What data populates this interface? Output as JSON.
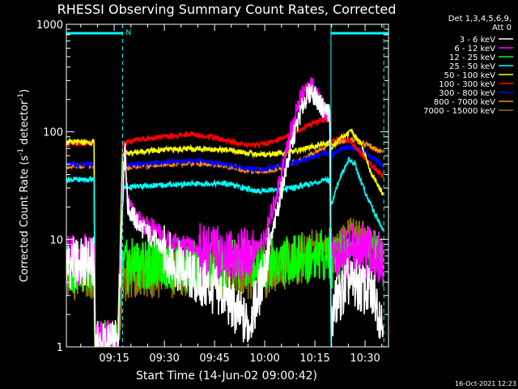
{
  "chart_data": {
    "type": "line",
    "title": "RHESSI Observing Summary Count Rates, Corrected",
    "xlabel": "Start Time (14-Jun-02 09:00:42)",
    "ylabel_main": "Corrected Count Rate (s",
    "ylabel_sup1": "-1",
    "ylabel_mid": " detector",
    "ylabel_sup2": "-1",
    "ylabel_end": ")",
    "y_scale": "log",
    "ylim": [
      1,
      1000
    ],
    "xlim_minutes": [
      0.7,
      97
    ],
    "x_ticks": [
      {
        "t": 15,
        "label": "09:15"
      },
      {
        "t": 30,
        "label": "09:30"
      },
      {
        "t": 45,
        "label": "09:45"
      },
      {
        "t": 60,
        "label": "10:00"
      },
      {
        "t": 75,
        "label": "10:15"
      },
      {
        "t": 90,
        "label": "10:30"
      }
    ],
    "y_ticks": [
      {
        "v": 1,
        "label": "1"
      },
      {
        "v": 10,
        "label": "10"
      },
      {
        "v": 100,
        "label": "100"
      },
      {
        "v": 1000,
        "label": "1000"
      }
    ],
    "legend_header": [
      "Det 1,3,4,5,6,9,",
      "Att 0"
    ],
    "night_flag_label": "N",
    "timestamp": "16-Oct-2021 12:23",
    "flag_segments": [
      [
        0.7,
        17.5
      ],
      [
        79.8,
        97
      ]
    ],
    "gap_markers": [
      17.5,
      79.8,
      95.6
    ],
    "series": [
      {
        "name": "3 - 6 keV",
        "color": "#ffffff",
        "points": [
          [
            0.7,
            6
          ],
          [
            9,
            6
          ],
          [
            9.3,
            1
          ],
          [
            16,
            1
          ],
          [
            17.5,
            22
          ],
          [
            18.2,
            80
          ],
          [
            19,
            20
          ],
          [
            22,
            14
          ],
          [
            27,
            10
          ],
          [
            33,
            6
          ],
          [
            40,
            4
          ],
          [
            48,
            3
          ],
          [
            52,
            2
          ],
          [
            55,
            1.6
          ],
          [
            58,
            3
          ],
          [
            62,
            10
          ],
          [
            66,
            40
          ],
          [
            69,
            100
          ],
          [
            72,
            200
          ],
          [
            74,
            240
          ],
          [
            77,
            170
          ],
          [
            79.5,
            150
          ],
          [
            79.8,
            1.5
          ],
          [
            81,
            2.5
          ],
          [
            85,
            4
          ],
          [
            89,
            3.5
          ],
          [
            93,
            3
          ],
          [
            95.5,
            1.5
          ]
        ]
      },
      {
        "name": "6 - 12 keV",
        "color": "#ff00ff",
        "points": [
          [
            0.7,
            6.5
          ],
          [
            9,
            6.5
          ],
          [
            9.3,
            1
          ],
          [
            16,
            1
          ],
          [
            17.5,
            25
          ],
          [
            18.2,
            85
          ],
          [
            19,
            22
          ],
          [
            22,
            15
          ],
          [
            27,
            12
          ],
          [
            33,
            9
          ],
          [
            40,
            8
          ],
          [
            48,
            7.5
          ],
          [
            52,
            7
          ],
          [
            56,
            7.5
          ],
          [
            60,
            10
          ],
          [
            64,
            30
          ],
          [
            67,
            80
          ],
          [
            70,
            180
          ],
          [
            72,
            240
          ],
          [
            74,
            260
          ],
          [
            77,
            180
          ],
          [
            79.5,
            140
          ],
          [
            79.8,
            7
          ],
          [
            83,
            7.5
          ],
          [
            87,
            8
          ],
          [
            91,
            7.5
          ],
          [
            95.5,
            6.5
          ]
        ]
      },
      {
        "name": "12 - 25 keV",
        "color": "#00ff00",
        "points": [
          [
            0.7,
            5.5
          ],
          [
            9,
            5.5
          ],
          [
            9.3,
            1
          ],
          [
            16,
            1
          ],
          [
            17.5,
            5.5
          ],
          [
            22,
            6
          ],
          [
            30,
            6
          ],
          [
            40,
            5.5
          ],
          [
            50,
            5.8
          ],
          [
            58,
            6
          ],
          [
            65,
            6.2
          ],
          [
            70,
            6.5
          ],
          [
            75,
            7
          ],
          [
            79.5,
            7.5
          ],
          [
            79.8,
            6
          ],
          [
            83,
            7.5
          ],
          [
            87,
            9
          ],
          [
            91,
            8
          ],
          [
            95.5,
            6
          ]
        ]
      },
      {
        "name": "25 - 50 keV",
        "color": "#00ffff",
        "points": [
          [
            0.7,
            36
          ],
          [
            9,
            36
          ],
          [
            9.3,
            1
          ],
          [
            16,
            1
          ],
          [
            17.5,
            30
          ],
          [
            22,
            31
          ],
          [
            30,
            32
          ],
          [
            40,
            33
          ],
          [
            48,
            33
          ],
          [
            54,
            30
          ],
          [
            58,
            28
          ],
          [
            62,
            29
          ],
          [
            68,
            30
          ],
          [
            74,
            33
          ],
          [
            79.5,
            36
          ],
          [
            79.8,
            20
          ],
          [
            81,
            28
          ],
          [
            83,
            40
          ],
          [
            85,
            55
          ],
          [
            87,
            50
          ],
          [
            89,
            33
          ],
          [
            92,
            20
          ],
          [
            95.5,
            12
          ]
        ]
      },
      {
        "name": "50 - 100 keV",
        "color": "#ffff00",
        "points": [
          [
            0.7,
            80
          ],
          [
            9,
            80
          ],
          [
            9.3,
            1
          ],
          [
            16,
            1
          ],
          [
            17.5,
            62
          ],
          [
            22,
            65
          ],
          [
            30,
            68
          ],
          [
            40,
            70
          ],
          [
            48,
            68
          ],
          [
            54,
            64
          ],
          [
            58,
            62
          ],
          [
            62,
            62
          ],
          [
            68,
            65
          ],
          [
            74,
            72
          ],
          [
            79.5,
            80
          ],
          [
            79.8,
            70
          ],
          [
            83,
            90
          ],
          [
            86,
            100
          ],
          [
            89,
            75
          ],
          [
            92,
            40
          ],
          [
            95.5,
            26
          ]
        ]
      },
      {
        "name": "100 - 300 keV",
        "color": "#ff0000",
        "points": [
          [
            0.7,
            78
          ],
          [
            9,
            78
          ],
          [
            9.3,
            1
          ],
          [
            16,
            1
          ],
          [
            17.5,
            78
          ],
          [
            22,
            85
          ],
          [
            30,
            90
          ],
          [
            38,
            95
          ],
          [
            44,
            90
          ],
          [
            50,
            80
          ],
          [
            56,
            75
          ],
          [
            62,
            80
          ],
          [
            68,
            95
          ],
          [
            73,
            115
          ],
          [
            78,
            130
          ],
          [
            79.5,
            128
          ],
          [
            79.8,
            80
          ],
          [
            83,
            90
          ],
          [
            86,
            80
          ],
          [
            89,
            62
          ],
          [
            92,
            48
          ],
          [
            95.5,
            38
          ]
        ]
      },
      {
        "name": "300 - 800 keV",
        "color": "#0000ff",
        "points": [
          [
            0.7,
            50
          ],
          [
            9,
            50
          ],
          [
            9.3,
            1
          ],
          [
            16,
            1
          ],
          [
            17.5,
            48
          ],
          [
            22,
            50
          ],
          [
            30,
            52
          ],
          [
            40,
            54
          ],
          [
            48,
            50
          ],
          [
            54,
            46
          ],
          [
            58,
            45
          ],
          [
            62,
            46
          ],
          [
            68,
            50
          ],
          [
            74,
            58
          ],
          [
            79.5,
            65
          ],
          [
            79.8,
            60
          ],
          [
            83,
            70
          ],
          [
            86,
            72
          ],
          [
            89,
            68
          ],
          [
            92,
            58
          ],
          [
            95.5,
            48
          ]
        ]
      },
      {
        "name": "800 - 7000 keV",
        "color": "#ff8c00",
        "points": [
          [
            0.7,
            48
          ],
          [
            9,
            48
          ],
          [
            9.3,
            1
          ],
          [
            16,
            1
          ],
          [
            17.5,
            46
          ],
          [
            22,
            48
          ],
          [
            30,
            50
          ],
          [
            40,
            51
          ],
          [
            48,
            48
          ],
          [
            54,
            44
          ],
          [
            58,
            43
          ],
          [
            62,
            44
          ],
          [
            68,
            50
          ],
          [
            74,
            62
          ],
          [
            79.5,
            75
          ],
          [
            79.8,
            75
          ],
          [
            83,
            82
          ],
          [
            86,
            85
          ],
          [
            89,
            80
          ],
          [
            92,
            72
          ],
          [
            95.5,
            62
          ]
        ]
      },
      {
        "name": "7000 - 15000 keV",
        "color": "#8b7a00",
        "points": [
          [
            0.7,
            4.8
          ],
          [
            9,
            4.8
          ],
          [
            9.3,
            1
          ],
          [
            16,
            1
          ],
          [
            17.5,
            4.5
          ],
          [
            22,
            5
          ],
          [
            30,
            5
          ],
          [
            40,
            4.8
          ],
          [
            48,
            4.5
          ],
          [
            54,
            4.6
          ],
          [
            60,
            5
          ],
          [
            66,
            5.5
          ],
          [
            72,
            6.5
          ],
          [
            76,
            8
          ],
          [
            79.5,
            9.5
          ],
          [
            79.8,
            8
          ],
          [
            83,
            11
          ],
          [
            86,
            13
          ],
          [
            89,
            12
          ],
          [
            92,
            10
          ],
          [
            95.5,
            8
          ]
        ]
      }
    ]
  }
}
